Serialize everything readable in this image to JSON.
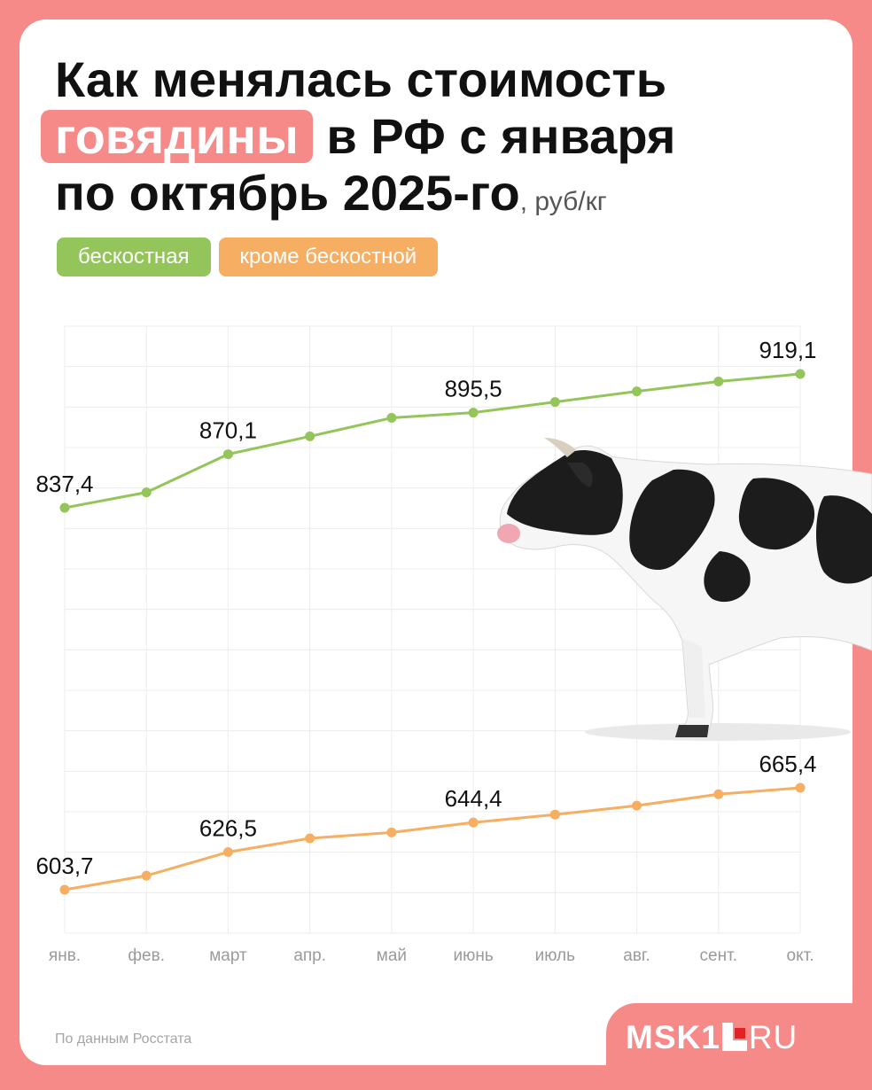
{
  "title": {
    "line1": "Как менялась стоимость",
    "highlight": "говядины",
    "line2_rest": " в РФ с января",
    "line3": "по октябрь 2025-го",
    "unit": ", руб/кг"
  },
  "legend": [
    {
      "label": "бескостная",
      "color": "#93c55a"
    },
    {
      "label": "кроме бескостной",
      "color": "#f6ae63"
    }
  ],
  "chart_data": {
    "type": "line",
    "categories": [
      "янв.",
      "фев.",
      "март",
      "апр.",
      "май",
      "июнь",
      "июль",
      "авг.",
      "сент.",
      "окт."
    ],
    "series": [
      {
        "name": "бескостная",
        "color": "#93c55a",
        "values": [
          837.4,
          846.8,
          870.1,
          881.0,
          892.3,
          895.5,
          902.0,
          908.5,
          914.5,
          919.1
        ],
        "labels": {
          "0": "837,4",
          "2": "870,1",
          "5": "895,5",
          "9": "919,1"
        }
      },
      {
        "name": "кроме бескостной",
        "color": "#f6ae63",
        "values": [
          603.7,
          612.2,
          626.5,
          634.8,
          638.4,
          644.4,
          649.2,
          654.6,
          661.5,
          665.4
        ],
        "labels": {
          "0": "603,7",
          "2": "626,5",
          "5": "644,4",
          "9": "665,4"
        }
      }
    ],
    "grid": true,
    "legend_position": "top-left"
  },
  "illustration": {
    "subject": "cow-illustration"
  },
  "footer": {
    "source": "По данным Росстата",
    "logo_left": "MSK1",
    "logo_right": "RU",
    "logo_accent": "#e32323"
  },
  "colors": {
    "background": "#f58a88",
    "card": "#ffffff",
    "grid": "#ececec",
    "tick": "#9a9a9a"
  }
}
